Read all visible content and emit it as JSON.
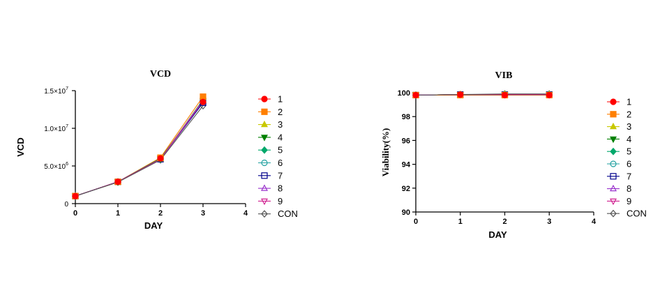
{
  "chart_data": [
    {
      "type": "line",
      "title": "VCD",
      "xlabel": "DAY",
      "ylabel": "VCD",
      "xlim": [
        0,
        4
      ],
      "ylim": [
        0,
        15000000
      ],
      "x_ticks": [
        0,
        1,
        2,
        3,
        4
      ],
      "x_tick_labels": [
        "0",
        "1",
        "2",
        "3",
        "4"
      ],
      "y_ticks": [
        0,
        5000000,
        10000000,
        15000000
      ],
      "y_tick_labels": [
        {
          "mantissa": "0",
          "exp": ""
        },
        {
          "mantissa": "5.0×10",
          "exp": "6"
        },
        {
          "mantissa": "1.0×10",
          "exp": "7"
        },
        {
          "mantissa": "1.5×10",
          "exp": "7"
        }
      ],
      "grid": false,
      "legend": "right",
      "x": [
        0,
        1,
        2,
        3
      ],
      "series": [
        {
          "name": "1",
          "color": "#ff0000",
          "marker": "circle",
          "values": [
            1000000,
            2900000,
            6000000,
            13500000
          ]
        },
        {
          "name": "2",
          "color": "#ff7f00",
          "marker": "square",
          "values": [
            1000000,
            2900000,
            6100000,
            14200000
          ]
        },
        {
          "name": "3",
          "color": "#c8c800",
          "marker": "triangle-up",
          "values": [
            1000000,
            2850000,
            5950000,
            13700000
          ]
        },
        {
          "name": "4",
          "color": "#008000",
          "marker": "triangle-down",
          "values": [
            1000000,
            2900000,
            6000000,
            13600000
          ]
        },
        {
          "name": "5",
          "color": "#00a86b",
          "marker": "diamond",
          "values": [
            1000000,
            2880000,
            5900000,
            13800000
          ]
        },
        {
          "name": "6",
          "color": "#20a0a0",
          "marker": "circle-open",
          "values": [
            1000000,
            2870000,
            5950000,
            13500000
          ]
        },
        {
          "name": "7",
          "color": "#00008b",
          "marker": "square-open",
          "values": [
            1000000,
            2900000,
            5900000,
            13400000
          ]
        },
        {
          "name": "8",
          "color": "#9932cc",
          "marker": "triangle-up-open",
          "values": [
            1000000,
            2880000,
            5850000,
            13600000
          ]
        },
        {
          "name": "9",
          "color": "#d02090",
          "marker": "triangle-down-open",
          "values": [
            1000000,
            2900000,
            5900000,
            13700000
          ]
        },
        {
          "name": "CON",
          "color": "#555555",
          "marker": "diamond-open",
          "values": [
            1000000,
            2850000,
            5800000,
            13000000
          ]
        }
      ]
    },
    {
      "type": "line",
      "title": "VIB",
      "xlabel": "DAY",
      "ylabel": "Viability(%)",
      "xlim": [
        0,
        4
      ],
      "ylim": [
        90,
        100
      ],
      "x_ticks": [
        0,
        1,
        2,
        3,
        4
      ],
      "x_tick_labels": [
        "0",
        "1",
        "2",
        "3",
        "4"
      ],
      "y_ticks": [
        90,
        92,
        94,
        96,
        98,
        100
      ],
      "y_tick_labels": [
        "90",
        "92",
        "94",
        "96",
        "98",
        "100"
      ],
      "grid": false,
      "legend": "right",
      "x": [
        0,
        1,
        2,
        3
      ],
      "series": [
        {
          "name": "1",
          "color": "#ff0000",
          "marker": "circle",
          "values": [
            99.8,
            99.85,
            99.8,
            99.8
          ]
        },
        {
          "name": "2",
          "color": "#ff7f00",
          "marker": "square",
          "values": [
            99.8,
            99.8,
            99.8,
            99.8
          ]
        },
        {
          "name": "3",
          "color": "#c8c800",
          "marker": "triangle-up",
          "values": [
            99.8,
            99.85,
            99.85,
            99.85
          ]
        },
        {
          "name": "4",
          "color": "#008000",
          "marker": "triangle-down",
          "values": [
            99.8,
            99.85,
            99.85,
            99.85
          ]
        },
        {
          "name": "5",
          "color": "#00a86b",
          "marker": "diamond",
          "values": [
            99.8,
            99.85,
            99.85,
            99.85
          ]
        },
        {
          "name": "6",
          "color": "#20a0a0",
          "marker": "circle-open",
          "values": [
            99.8,
            99.85,
            99.85,
            99.85
          ]
        },
        {
          "name": "7",
          "color": "#00008b",
          "marker": "square-open",
          "values": [
            99.8,
            99.85,
            99.85,
            99.85
          ]
        },
        {
          "name": "8",
          "color": "#9932cc",
          "marker": "triangle-up-open",
          "values": [
            99.8,
            99.85,
            99.85,
            99.85
          ]
        },
        {
          "name": "9",
          "color": "#d02090",
          "marker": "triangle-down-open",
          "values": [
            99.8,
            99.85,
            99.85,
            99.85
          ]
        },
        {
          "name": "CON",
          "color": "#555555",
          "marker": "diamond-open",
          "values": [
            99.8,
            99.85,
            99.9,
            99.9
          ]
        }
      ]
    }
  ]
}
